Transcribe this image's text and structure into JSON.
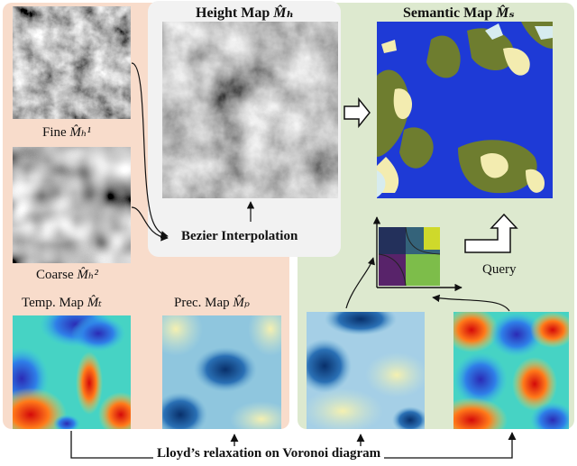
{
  "colors": {
    "left_panel_bg": "#f8dccb",
    "right_panel_bg": "#dde9cf",
    "center_panel_bg": "#f2f2f2",
    "ocean": "#1f39d8",
    "land_olive": "#6e7d2f",
    "desert": "#f3ecb0",
    "ice": "#d7ecef"
  },
  "labels": {
    "height_map": "Height Map",
    "height_map_symbol": "M̂ₕ",
    "semantic_map": "Semantic Map",
    "semantic_map_symbol": "M̂ₛ",
    "fine": "Fine",
    "fine_symbol": "M̂ₕ¹",
    "coarse": "Coarse",
    "coarse_symbol": "M̂ₕ²",
    "bezier": "Bezier Interpolation",
    "temp_map": "Temp. Map",
    "temp_symbol": "M̂ₜ",
    "prec_map": "Prec. Map",
    "prec_symbol": "M̂ₚ",
    "query": "Query",
    "lloyd": "Lloyd’s relaxation on Voronoi diagram"
  },
  "icons": [
    "hollow-right-arrow-icon",
    "hollow-bent-up-arrow-icon"
  ]
}
